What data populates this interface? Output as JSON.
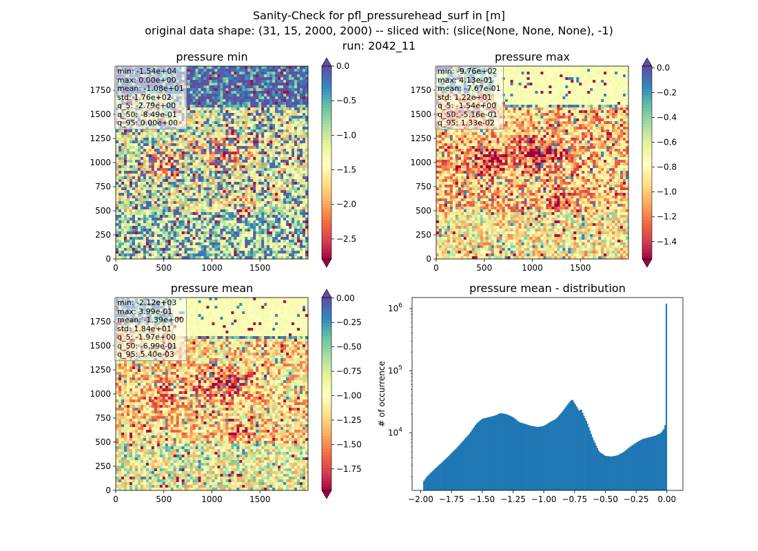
{
  "figure": {
    "title_lines": [
      "Sanity-Check for pfl_pressurehead_surf in [m]",
      "original data shape: (31, 15, 2000, 2000) -- sliced with: (slice(None, None, None), -1)",
      "run: 2042_11"
    ]
  },
  "chart_data": [
    {
      "type": "heatmap",
      "title": "pressure min",
      "colormap": "Spectral",
      "xlim": [
        0,
        2000
      ],
      "ylim": [
        0,
        2000
      ],
      "xticks": [
        "0",
        "500",
        "1000",
        "1500"
      ],
      "yticks": [
        "0",
        "250",
        "500",
        "750",
        "1000",
        "1250",
        "1500",
        "1750"
      ],
      "colorbar": {
        "min": -2.79,
        "max": 0.0,
        "ticks": [
          "0.0",
          "−0.5",
          "−1.0",
          "−1.5",
          "−2.0",
          "−2.5"
        ],
        "tick_values": [
          0,
          -0.5,
          -1.0,
          -1.5,
          -2.0,
          -2.5
        ],
        "extend": "both"
      },
      "stats": [
        "min: -1.54e+04",
        "max: 0.00e+00",
        "mean: -1.08e+01",
        "std: 1.76e+02",
        "q_5: -2.79e+00",
        "q_50: -8.49e-01",
        "q_95: 0.00e+00"
      ]
    },
    {
      "type": "heatmap",
      "title": "pressure max",
      "colormap": "Spectral",
      "xlim": [
        0,
        2000
      ],
      "ylim": [
        0,
        2000
      ],
      "xticks": [
        "0",
        "500",
        "1000",
        "1500"
      ],
      "yticks": [
        "0",
        "250",
        "500",
        "750",
        "1000",
        "1250",
        "1500",
        "1750"
      ],
      "colorbar": {
        "min": -1.54,
        "max": 0.0133,
        "ticks": [
          "0.0",
          "−0.2",
          "−0.4",
          "−0.6",
          "−0.8",
          "−1.0",
          "−1.2",
          "−1.4"
        ],
        "tick_values": [
          0,
          -0.2,
          -0.4,
          -0.6,
          -0.8,
          -1.0,
          -1.2,
          -1.4
        ],
        "extend": "both"
      },
      "stats": [
        "min: -9.76e+02",
        "max: 4.13e-01",
        "mean: -7.67e-01",
        "std: 1.22e+01",
        "q_5: -1.54e+00",
        "q_50: -5.16e-01",
        "q_95: 1.33e-02"
      ]
    },
    {
      "type": "heatmap",
      "title": "pressure mean",
      "colormap": "Spectral",
      "xlim": [
        0,
        2000
      ],
      "ylim": [
        0,
        2000
      ],
      "xticks": [
        "0",
        "500",
        "1000",
        "1500"
      ],
      "yticks": [
        "0",
        "250",
        "500",
        "750",
        "1000",
        "1250",
        "1500",
        "1750"
      ],
      "colorbar": {
        "min": -1.97,
        "max": 0.0054,
        "ticks": [
          "0.00",
          "−0.25",
          "−0.50",
          "−0.75",
          "−1.00",
          "−1.25",
          "−1.50",
          "−1.75"
        ],
        "tick_values": [
          0,
          -0.25,
          -0.5,
          -0.75,
          -1.0,
          -1.25,
          -1.5,
          -1.75
        ],
        "extend": "both"
      },
      "stats": [
        "min: -2.12e+03",
        "max: 3.99e-01",
        "mean: -1.39e+00",
        "std: 1.84e+01",
        "q_5: -1.97e+00",
        "q_50: -6.99e-01",
        "q_95: 5.40e-03"
      ]
    },
    {
      "type": "bar",
      "title": "pressure mean - distribution",
      "xlabel": "",
      "ylabel": "# of occurrence",
      "yscale": "log",
      "xlim": [
        -2.07,
        0.13
      ],
      "ylim": [
        1200,
        1500000
      ],
      "xticks": [
        "−2.00",
        "−1.75",
        "−1.50",
        "−1.25",
        "−1.00",
        "−0.75",
        "−0.50",
        "−0.25",
        "0.00"
      ],
      "xtick_values": [
        -2.0,
        -1.75,
        -1.5,
        -1.25,
        -1.0,
        -0.75,
        -0.5,
        -0.25,
        0.0
      ],
      "yticks": [
        "10^4",
        "10^5",
        "10^6"
      ],
      "ytick_values": [
        10000,
        100000,
        1000000
      ],
      "color": "#1f77b4",
      "histogram_envelope": [
        [
          -1.975,
          1700
        ],
        [
          -1.95,
          2000
        ],
        [
          -1.9,
          2500
        ],
        [
          -1.8,
          3800
        ],
        [
          -1.7,
          6000
        ],
        [
          -1.6,
          10000
        ],
        [
          -1.55,
          14000
        ],
        [
          -1.5,
          17000
        ],
        [
          -1.4,
          19000
        ],
        [
          -1.35,
          21000
        ],
        [
          -1.3,
          20000
        ],
        [
          -1.25,
          18000
        ],
        [
          -1.2,
          15000
        ],
        [
          -1.1,
          13000
        ],
        [
          -1.05,
          12500
        ],
        [
          -1.0,
          13000
        ],
        [
          -0.95,
          15000
        ],
        [
          -0.9,
          17000
        ],
        [
          -0.85,
          22000
        ],
        [
          -0.8,
          30000
        ],
        [
          -0.77,
          35000
        ],
        [
          -0.74,
          28000
        ],
        [
          -0.71,
          22000
        ],
        [
          -0.7,
          25000
        ],
        [
          -0.68,
          20000
        ],
        [
          -0.65,
          15000
        ],
        [
          -0.6,
          8000
        ],
        [
          -0.55,
          5000
        ],
        [
          -0.5,
          4300
        ],
        [
          -0.45,
          4200
        ],
        [
          -0.4,
          4400
        ],
        [
          -0.35,
          5000
        ],
        [
          -0.3,
          6000
        ],
        [
          -0.25,
          7000
        ],
        [
          -0.2,
          8000
        ],
        [
          -0.15,
          8500
        ],
        [
          -0.1,
          9000
        ],
        [
          -0.05,
          10000
        ],
        [
          -0.02,
          12000
        ],
        [
          -0.01,
          15000
        ],
        [
          -0.005,
          24000
        ],
        [
          0.0,
          1200000
        ]
      ]
    }
  ]
}
